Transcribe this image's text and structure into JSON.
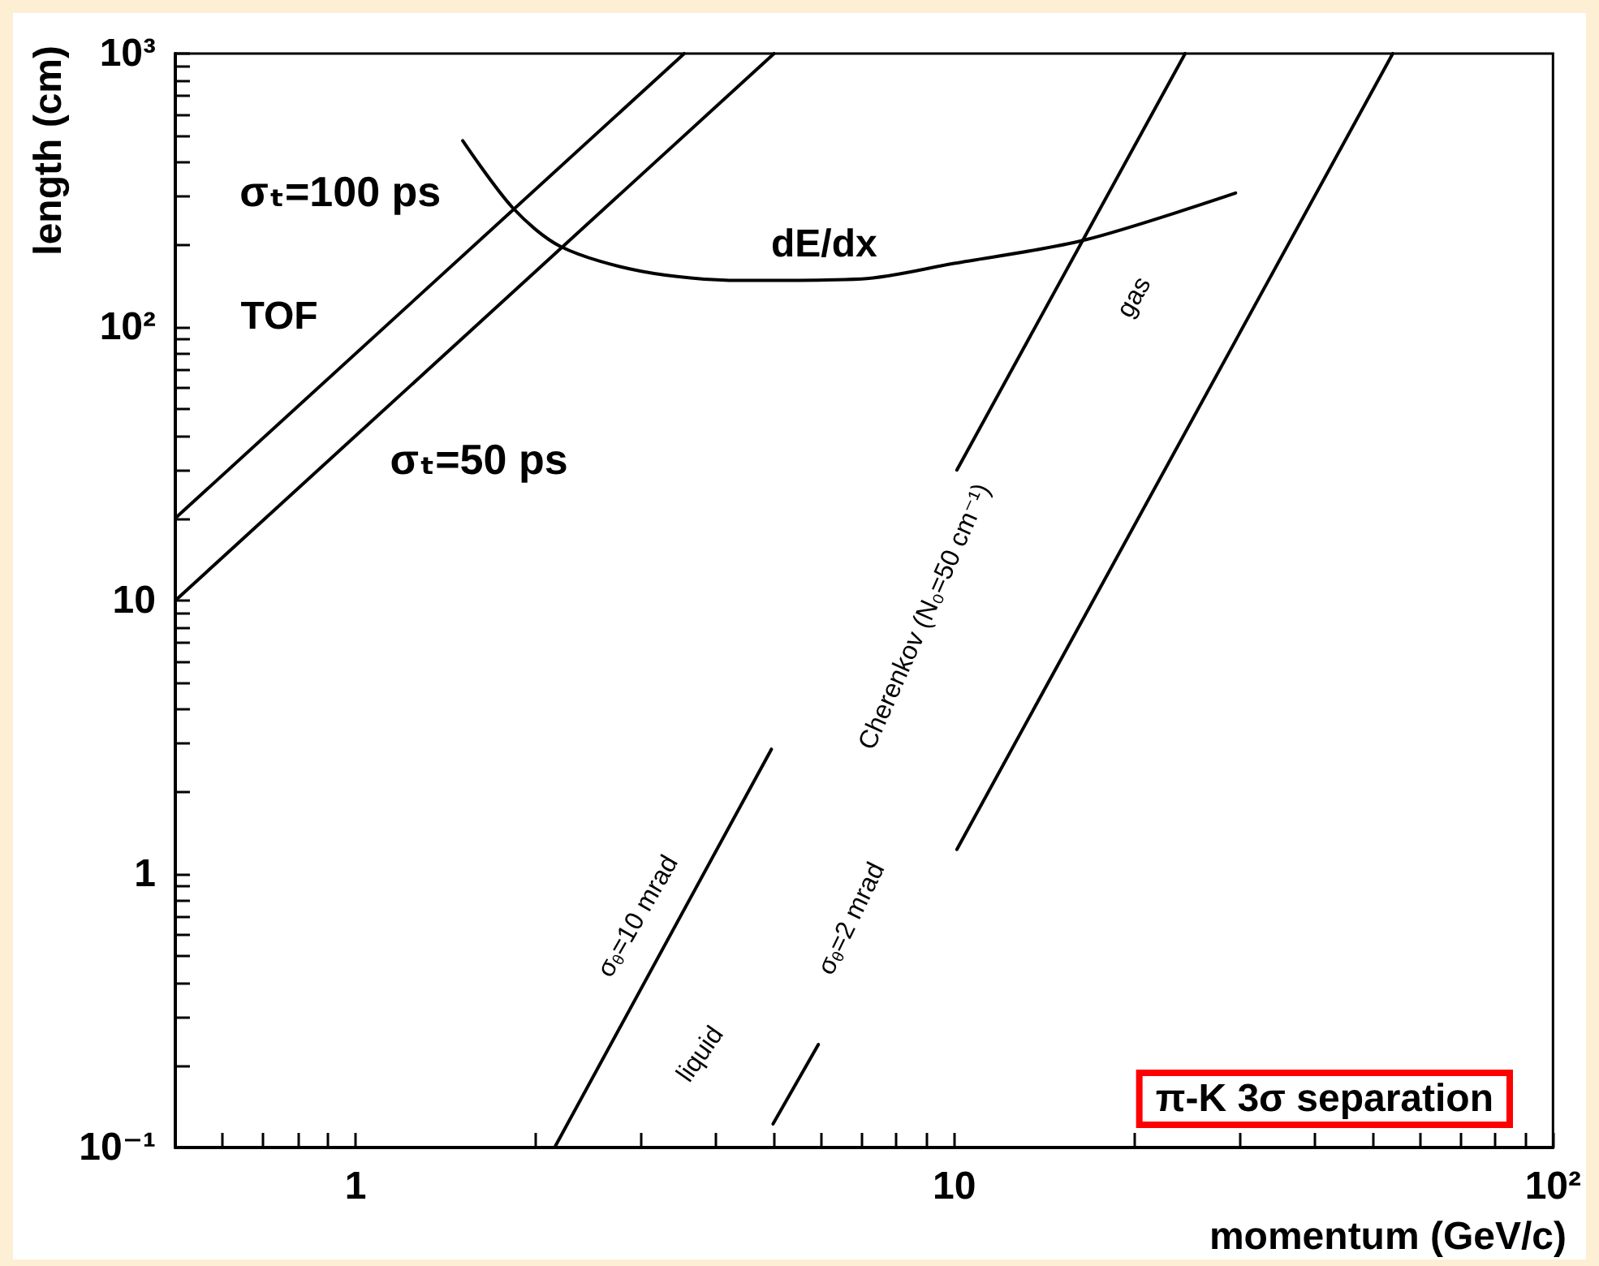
{
  "chart_data": {
    "type": "line",
    "xlabel": "momentum (GeV/c)",
    "ylabel": "length (cm)",
    "log": "xy",
    "xlim": [
      0.5,
      100
    ],
    "xticks": [
      {
        "value": 0.6,
        "label": null
      },
      {
        "value": 0.7,
        "label": null
      },
      {
        "value": 0.8,
        "label": null
      },
      {
        "value": 0.9,
        "label": null
      },
      1,
      {
        "value": 2,
        "label": null
      },
      {
        "value": 3,
        "label": null
      },
      {
        "value": 4,
        "label": null
      },
      {
        "value": 5,
        "label": null
      },
      {
        "value": 6,
        "label": null
      },
      {
        "value": 7,
        "label": null
      },
      {
        "value": 8,
        "label": null
      },
      {
        "value": 9,
        "label": null
      },
      10,
      {
        "value": 20,
        "label": null
      },
      {
        "value": 30,
        "label": null
      },
      {
        "value": 40,
        "label": null
      },
      {
        "value": 50,
        "label": null
      },
      {
        "value": 60,
        "label": null
      },
      {
        "value": 70,
        "label": null
      },
      {
        "value": 80,
        "label": null
      },
      {
        "value": 90,
        "label": null
      },
      {
        "value": 100,
        "label": "10²"
      }
    ],
    "ylim": [
      0.1,
      1000
    ],
    "yticks": [
      {
        "value": 0.1,
        "label": "10⁻¹"
      },
      {
        "value": 0.2,
        "label": null
      },
      {
        "value": 0.3,
        "label": null
      },
      {
        "value": 0.4,
        "label": null
      },
      {
        "value": 0.5,
        "label": null
      },
      {
        "value": 0.6,
        "label": null
      },
      {
        "value": 0.7,
        "label": null
      },
      {
        "value": 0.8,
        "label": null
      },
      {
        "value": 0.9,
        "label": null
      },
      1,
      {
        "value": 2,
        "label": null
      },
      {
        "value": 3,
        "label": null
      },
      {
        "value": 4,
        "label": null
      },
      {
        "value": 5,
        "label": null
      },
      {
        "value": 6,
        "label": null
      },
      {
        "value": 7,
        "label": null
      },
      {
        "value": 8,
        "label": null
      },
      {
        "value": 9,
        "label": null
      },
      10,
      {
        "value": 20,
        "label": null
      },
      {
        "value": 30,
        "label": null
      },
      {
        "value": 40,
        "label": null
      },
      {
        "value": 50,
        "label": null
      },
      {
        "value": 60,
        "label": null
      },
      {
        "value": 70,
        "label": null
      },
      {
        "value": 80,
        "label": null
      },
      {
        "value": 90,
        "label": null
      },
      {
        "value": 100,
        "label": "10²"
      },
      {
        "value": 200,
        "label": null
      },
      {
        "value": 300,
        "label": null
      },
      {
        "value": 400,
        "label": null
      },
      {
        "value": 500,
        "label": null
      },
      {
        "value": 600,
        "label": null
      },
      {
        "value": 700,
        "label": null
      },
      {
        "value": 800,
        "label": null
      },
      {
        "value": 900,
        "label": null
      },
      {
        "value": 1000,
        "label": "10³"
      }
    ],
    "series": [
      {
        "color": "#000000",
        "x": [
          0.5,
          3.54
        ],
        "values": [
          20,
          1000
        ]
      },
      {
        "color": "#000000",
        "x": [
          0.5,
          5
        ],
        "values": [
          10,
          1000
        ]
      },
      {
        "color": "#000000",
        "x": [
          1.51,
          1.83,
          2.2,
          3,
          4.4,
          7,
          10,
          16.5,
          29.5
        ],
        "values": [
          480,
          273,
          197,
          160,
          148,
          150,
          171,
          208,
          309
        ]
      },
      {
        "color": "#000000",
        "x": [
          10.1,
          24.3
        ],
        "values": [
          30,
          1000
        ]
      },
      {
        "color": "#000000",
        "x": [
          10.1,
          54
        ],
        "values": [
          1.23,
          1000
        ]
      },
      {
        "color": "#000000",
        "x": [
          2.15,
          4.95
        ],
        "values": [
          0.1,
          2.86
        ]
      },
      {
        "color": "#000000",
        "x": [
          4.98,
          5.93
        ],
        "values": [
          0.122,
          0.238
        ]
      }
    ],
    "annotations": [
      "σₜ=100 ps",
      "TOF",
      "σₜ=50 ps",
      "dE/dx",
      "gas",
      "Cherenkov (N₀=50 cm⁻¹)",
      "σ$_{θ}$=10 mrad",
      "liquid",
      "σ$_{θ}$=2 mrad",
      "π-K 3σ separation"
    ]
  }
}
